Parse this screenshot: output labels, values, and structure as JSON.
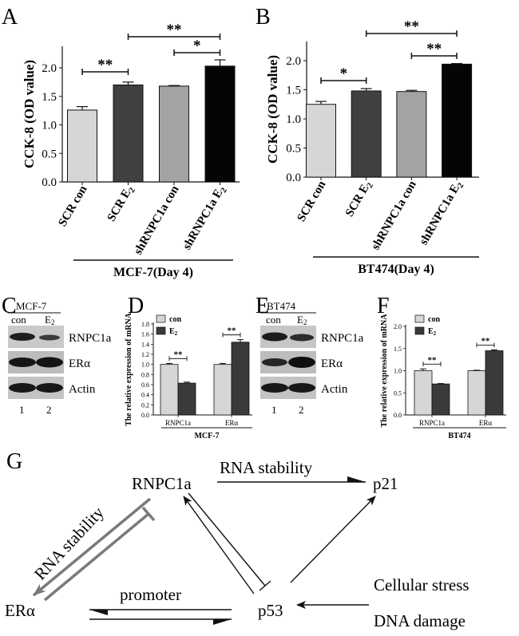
{
  "panels": {
    "A": {
      "letter": "A",
      "ylabel": "CCK-8 (OD value)",
      "footer": "MCF-7(Day 4)"
    },
    "B": {
      "letter": "B",
      "ylabel": "CCK-8 (OD value)",
      "footer": "BT474(Day 4)"
    },
    "C": {
      "letter": "C",
      "cell": "MCF-7",
      "lanes": [
        "con",
        "E2"
      ],
      "rows": [
        "RNPC1a",
        "ERα",
        "Actin"
      ],
      "lane_numbers": [
        "1",
        "2"
      ]
    },
    "D": {
      "letter": "D",
      "footer": "MCF-7"
    },
    "E": {
      "letter": "E",
      "cell": "BT474",
      "lanes": [
        "con",
        "E2"
      ],
      "rows": [
        "RNPC1a",
        "ERα",
        "Actin"
      ],
      "lane_numbers": [
        "1",
        "2"
      ]
    },
    "F": {
      "letter": "F",
      "footer": "BT474"
    },
    "G": {
      "letter": "G",
      "nodes": {
        "rnpc1a": "RNPC1a",
        "p21": "p21",
        "era": "ERα",
        "p53": "p53",
        "stress": "Cellular stress",
        "dna": "DNA damage"
      },
      "edge_labels": {
        "rna_stability_top": "RNA stability",
        "rna_stability_left": "RNA stability",
        "promoter": "promoter"
      }
    }
  },
  "chart_data": [
    {
      "id": "A",
      "type": "bar",
      "ylabel": "CCK-8 (OD value)",
      "categories": [
        "SCR con",
        "SCR E2",
        "shRNPC1a con",
        "shRNPC1a E2"
      ],
      "values": [
        1.26,
        1.7,
        1.68,
        2.03
      ],
      "errors": [
        0.06,
        0.05,
        0.01,
        0.11
      ],
      "colors": [
        "#d6d6d6",
        "#404040",
        "#a3a3a3",
        "#050505"
      ],
      "ylim": [
        0,
        2.0
      ],
      "yticks": [
        "0.0",
        "0.5",
        "1.0",
        "1.5",
        "2.0"
      ],
      "significance": [
        {
          "from": 0,
          "to": 1,
          "label": "**"
        },
        {
          "from": 1,
          "to": 3,
          "label": "**"
        },
        {
          "from": 2,
          "to": 3,
          "label": "*"
        }
      ],
      "footer": "MCF-7(Day 4)"
    },
    {
      "id": "B",
      "type": "bar",
      "ylabel": "CCK-8 (OD value)",
      "categories": [
        "SCR con",
        "SCR E2",
        "shRNPC1a con",
        "shRNPC1a E2"
      ],
      "values": [
        1.25,
        1.48,
        1.47,
        1.94
      ],
      "errors": [
        0.05,
        0.04,
        0.02,
        0.01
      ],
      "colors": [
        "#d6d6d6",
        "#404040",
        "#a3a3a3",
        "#050505"
      ],
      "ylim": [
        0,
        2.0
      ],
      "yticks": [
        "0.0",
        "0.5",
        "1.0",
        "1.5",
        "2.0"
      ],
      "significance": [
        {
          "from": 0,
          "to": 1,
          "label": "*"
        },
        {
          "from": 1,
          "to": 3,
          "label": "**"
        },
        {
          "from": 2,
          "to": 3,
          "label": "**"
        }
      ],
      "footer": "BT474(Day 4)"
    },
    {
      "id": "D",
      "type": "bar",
      "ylabel": "The relative expression of mRNA",
      "groups": [
        "RNPC1a",
        "ERα"
      ],
      "series": [
        {
          "name": "con",
          "color": "#d6d6d6",
          "values": [
            1.0,
            1.0
          ],
          "errors": [
            0.02,
            0.02
          ]
        },
        {
          "name": "E2",
          "color": "#3a3a3a",
          "values": [
            0.63,
            1.44
          ],
          "errors": [
            0.02,
            0.05
          ]
        }
      ],
      "ylim": [
        0,
        1.8
      ],
      "yticks": [
        "0.0",
        "0.2",
        "0.4",
        "0.6",
        "0.8",
        "1.0",
        "1.2",
        "1.4",
        "1.6",
        "1.8"
      ],
      "significance": [
        {
          "group": 0,
          "label": "**"
        },
        {
          "group": 1,
          "label": "**"
        }
      ],
      "footer": "MCF-7"
    },
    {
      "id": "F",
      "type": "bar",
      "ylabel": "The relative expression of mRNA",
      "groups": [
        "RNPC1a",
        "ERα"
      ],
      "series": [
        {
          "name": "con",
          "color": "#d6d6d6",
          "values": [
            1.0,
            1.0
          ],
          "errors": [
            0.04,
            0.01
          ]
        },
        {
          "name": "E2",
          "color": "#3a3a3a",
          "values": [
            0.7,
            1.45
          ],
          "errors": [
            0.01,
            0.02
          ]
        }
      ],
      "ylim": [
        0,
        2.0
      ],
      "yticks": [
        "0.0",
        "0.5",
        "1.0",
        "1.5",
        "2.0"
      ],
      "significance": [
        {
          "group": 0,
          "label": "**"
        },
        {
          "group": 1,
          "label": "**"
        }
      ],
      "footer": "BT474"
    }
  ]
}
